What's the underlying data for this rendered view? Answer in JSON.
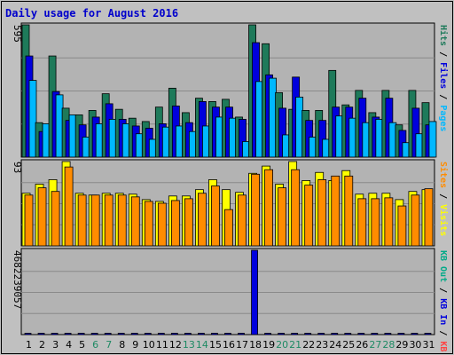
{
  "colors": {
    "background": "#c0c0c0",
    "plot": "#b3b3b3",
    "title": "#0000cc",
    "hits": "#1e7a5a",
    "files": "#0000dd",
    "pages": "#00b8ff",
    "visits": "#ffff00",
    "sites": "#ff8c00",
    "kbout": "#00aa88",
    "kbin": "#0000dd",
    "kbf": "#ff4444",
    "weekend": "#1e8a64",
    "weekday": "#000000"
  },
  "chart_data": {
    "type": "bar",
    "title": "Daily usage for August 2016",
    "categories": [
      "1",
      "2",
      "3",
      "4",
      "5",
      "6",
      "7",
      "8",
      "9",
      "10",
      "11",
      "12",
      "13",
      "14",
      "15",
      "16",
      "17",
      "18",
      "19",
      "20",
      "21",
      "22",
      "23",
      "24",
      "25",
      "26",
      "27",
      "28",
      "29",
      "30",
      "31"
    ],
    "weekend_days": [
      6,
      7,
      13,
      14,
      20,
      21,
      27,
      28
    ],
    "panels": [
      {
        "id": "top",
        "max_label": "595",
        "ymax": 595,
        "legend": [
          {
            "text": "Pages",
            "color_key": "pages"
          },
          {
            "text": "/",
            "color_key": "weekday"
          },
          {
            "text": "Files",
            "color_key": "files"
          },
          {
            "text": "/",
            "color_key": "weekday"
          },
          {
            "text": "Hits",
            "color_key": "hits"
          }
        ],
        "series": [
          {
            "name": "Hits",
            "color_key": "hits",
            "values": [
              595,
              155,
              455,
              220,
              190,
              210,
              285,
              215,
              175,
              160,
              225,
              310,
              200,
              265,
              250,
              260,
              180,
              595,
              510,
              290,
              215,
              210,
              210,
              390,
              235,
              300,
              200,
              300,
              145,
              300,
              245
            ]
          },
          {
            "name": "Files",
            "color_key": "files",
            "values": [
              455,
              115,
              295,
              165,
              145,
              180,
              240,
              170,
              140,
              130,
              150,
              230,
              155,
              250,
              225,
              225,
              170,
              515,
              370,
              220,
              360,
              165,
              165,
              225,
              225,
              265,
              180,
              265,
              120,
              220,
              145
            ]
          },
          {
            "name": "Pages",
            "color_key": "pages",
            "values": [
              345,
              150,
              280,
              190,
              90,
              150,
              170,
              150,
              105,
              80,
              135,
              140,
              115,
              140,
              180,
              175,
              70,
              340,
              355,
              100,
              270,
              90,
              80,
              185,
              175,
              155,
              170,
              155,
              65,
              105,
              160
            ]
          }
        ]
      },
      {
        "id": "middle",
        "max_label": "93",
        "ymax": 93,
        "legend": [
          {
            "text": "Visits",
            "color_key": "visits"
          },
          {
            "text": "/",
            "color_key": "weekday"
          },
          {
            "text": "Sites",
            "color_key": "sites"
          }
        ],
        "series": [
          {
            "name": "Visits",
            "color_key": "visits",
            "values": [
              58,
              68,
              73,
              93,
              58,
              56,
              58,
              58,
              57,
              51,
              49,
              55,
              55,
              62,
              73,
              62,
              59,
              80,
              88,
              68,
              93,
              72,
              81,
              72,
              83,
              57,
              58,
              58,
              51,
              60,
              62
            ]
          },
          {
            "name": "Sites",
            "color_key": "sites",
            "values": [
              56,
              64,
              60,
              87,
              56,
              56,
              56,
              56,
              54,
              49,
              47,
              50,
              52,
              58,
              66,
              40,
              56,
              79,
              84,
              64,
              84,
              67,
              73,
              77,
              77,
              52,
              52,
              53,
              44,
              56,
              63
            ]
          }
        ]
      },
      {
        "id": "bottom",
        "max_label": "4682239057",
        "ymax": 4682239057,
        "legend": [
          {
            "text": "KB F",
            "color_key": "kbf"
          },
          {
            "text": "/",
            "color_key": "weekday"
          },
          {
            "text": "KB In",
            "color_key": "kbin"
          },
          {
            "text": "/",
            "color_key": "weekday"
          },
          {
            "text": "KB Out",
            "color_key": "kbout"
          }
        ],
        "series": [
          {
            "name": "KB In",
            "color_key": "kbin",
            "values": [
              0,
              0,
              0,
              0,
              0,
              0,
              0,
              0,
              0,
              0,
              0,
              0,
              0,
              0,
              0,
              0,
              0,
              4682239057,
              0,
              0,
              0,
              0,
              0,
              0,
              0,
              0,
              0,
              0,
              0,
              0,
              0
            ]
          }
        ]
      }
    ]
  }
}
